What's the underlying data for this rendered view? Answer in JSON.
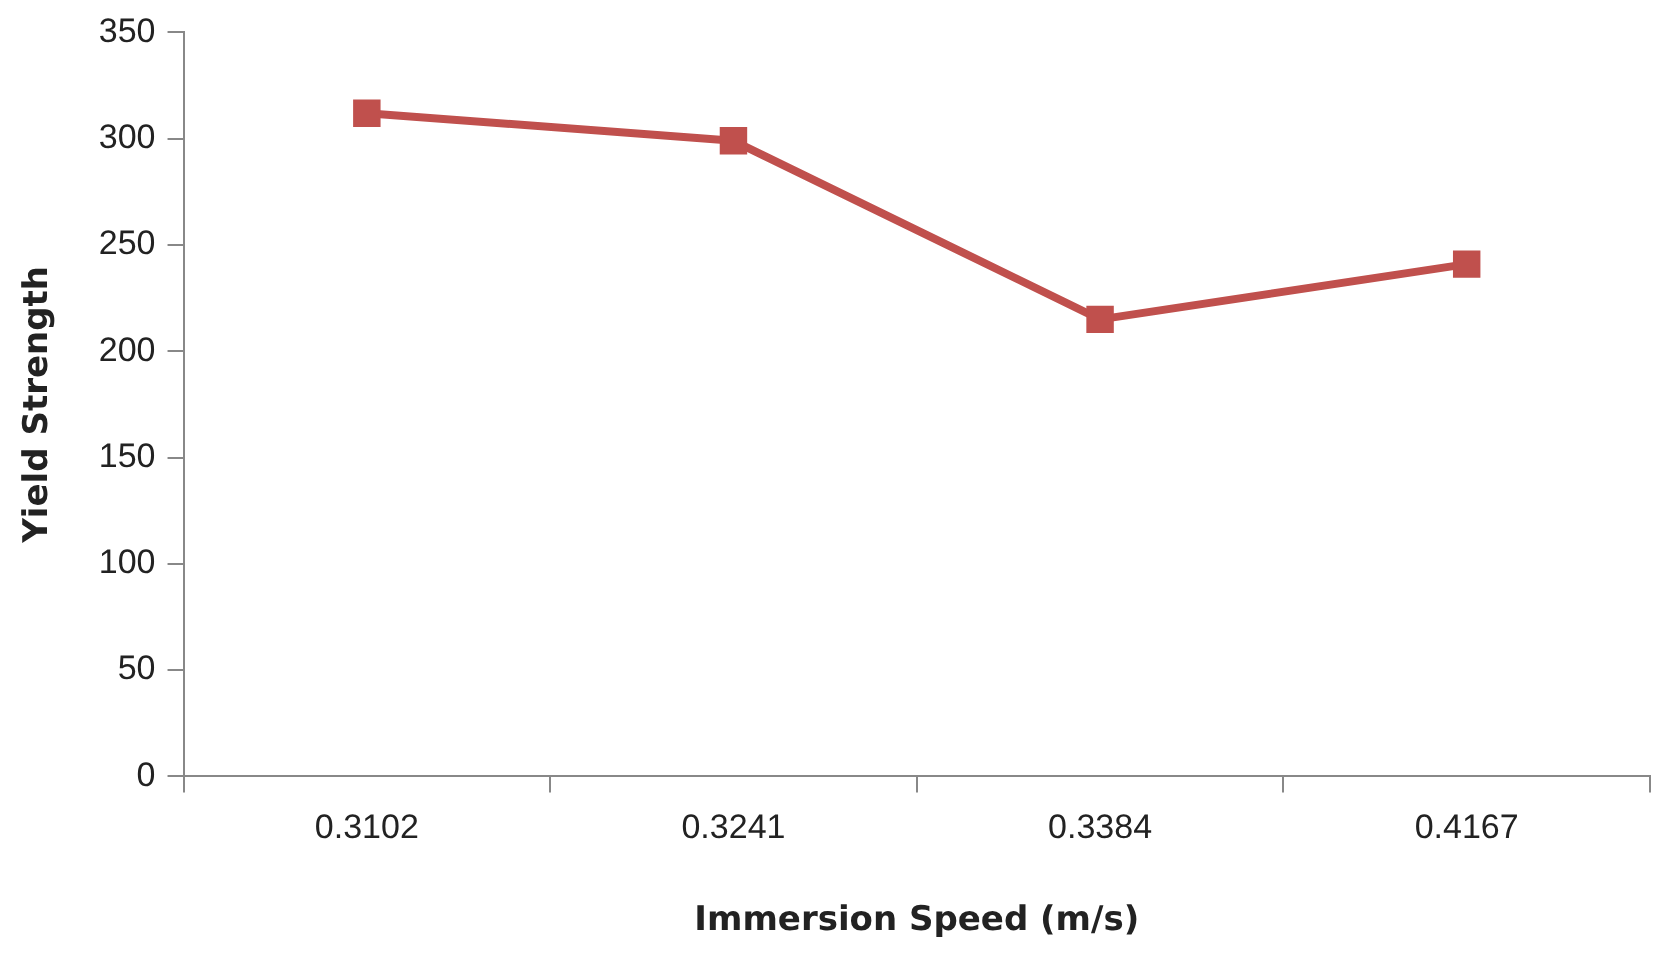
{
  "chart_data": {
    "type": "line",
    "xlabel": "Immersion Speed (m/s)",
    "ylabel": "Yield Strength",
    "categories": [
      "0.3102",
      "0.3241",
      "0.3384",
      "0.4167"
    ],
    "series": [
      {
        "color": "#c0504d",
        "values": [
          312,
          299,
          215,
          241
        ]
      }
    ],
    "ylim": [
      0,
      350
    ],
    "yticks": [
      0,
      50,
      100,
      150,
      200,
      250,
      300,
      350
    ],
    "grid": false,
    "legend": false,
    "marker": "square",
    "line_style": "solid"
  }
}
